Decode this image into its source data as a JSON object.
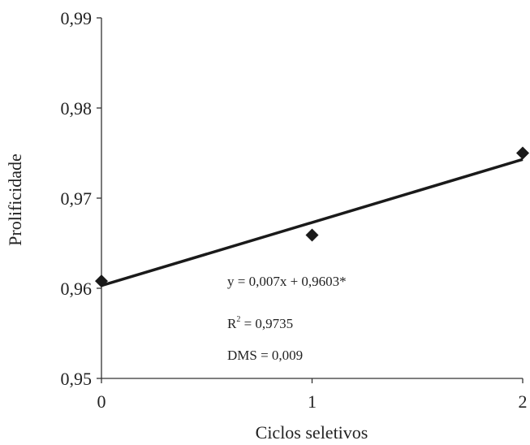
{
  "chart_data": {
    "type": "scatter",
    "xlabel": "Ciclos seletivos",
    "ylabel": "Prolificidade",
    "x_ticks": [
      "0",
      "1",
      "2"
    ],
    "y_ticks": [
      "0,95",
      "0,96",
      "0,97",
      "0,98",
      "0,99"
    ],
    "xlim": [
      0,
      2
    ],
    "ylim": [
      0.95,
      0.99
    ],
    "points": [
      {
        "x": 0,
        "y": 0.9608
      },
      {
        "x": 1,
        "y": 0.9659
      },
      {
        "x": 2,
        "y": 0.975
      }
    ],
    "trendline": {
      "slope": 0.007,
      "intercept": 0.9603
    },
    "marker": "diamond",
    "grid": false,
    "annotations": {
      "equation": "y = 0,007x + 0,9603*",
      "r2_prefix": "R",
      "r2_sup": "2",
      "r2_value": " = 0,9735",
      "dms": "DMS = 0,009"
    },
    "colors": {
      "series": "#1a1a1a",
      "axis": "#333333"
    }
  }
}
